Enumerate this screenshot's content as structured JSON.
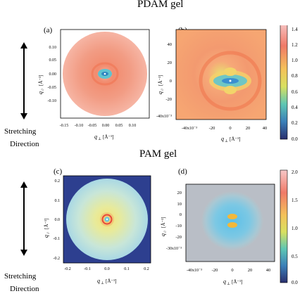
{
  "sections": [
    {
      "title": "PDAM gel",
      "side_label": [
        "Stretching",
        "Direction"
      ],
      "panels": [
        {
          "label": "(a)",
          "x_axis_label": "q",
          "x_axis_subscript": "⊥",
          "x_axis_unit": "[Å⁻¹]",
          "y_axis_label": "q",
          "y_axis_subscript": "//",
          "y_axis_unit": "[Å⁻¹]",
          "x_ticks": [
            "-0.15",
            "-0.10",
            "-0.05",
            "0.00",
            "0.05",
            "0.10"
          ],
          "y_ticks": [
            "0.10",
            "0.05",
            "0.00",
            "-0.05",
            "-0.10"
          ]
        },
        {
          "label": "(b)",
          "x_axis_label": "q",
          "x_axis_subscript": "⊥",
          "x_axis_unit": "[Å⁻¹]",
          "y_axis_label": "q",
          "y_axis_subscript": "//",
          "y_axis_unit": "[Å⁻¹]",
          "x_ticks": [
            "-40x10⁻³",
            "-20",
            "0",
            "20",
            "40"
          ],
          "y_ticks": [
            "40",
            "20",
            "0",
            "-20",
            "-40x10⁻³"
          ],
          "colorbar_ticks": [
            "1.4",
            "1.2",
            "1.0",
            "0.8",
            "0.6",
            "0.4",
            "0.2",
            "0.0"
          ]
        }
      ]
    },
    {
      "title": "PAM gel",
      "side_label": [
        "Stretching",
        "Direction"
      ],
      "panels": [
        {
          "label": "(c)",
          "x_axis_label": "q",
          "x_axis_subscript": "⊥",
          "x_axis_unit": "[Å⁻¹]",
          "y_axis_label": "q",
          "y_axis_subscript": "//",
          "y_axis_unit": "[Å⁻¹]",
          "x_ticks": [
            "-0.2",
            "-0.1",
            "0.0",
            "0.1",
            "0.2"
          ],
          "y_ticks": [
            "0.2",
            "0.1",
            "0.0",
            "-0.1",
            "-0.2"
          ]
        },
        {
          "label": "(d)",
          "x_axis_label": "q",
          "x_axis_subscript": "⊥",
          "x_axis_unit": "[Å⁻¹]",
          "y_axis_label": "q",
          "y_axis_subscript": "//",
          "y_axis_unit": "[Å⁻¹]",
          "x_ticks": [
            "-40x10⁻³",
            "-20",
            "0",
            "20",
            "40"
          ],
          "y_ticks": [
            "20",
            "10",
            "0",
            "-10",
            "-20",
            "-30x10⁻³"
          ],
          "colorbar_ticks": [
            "2.0",
            "1.5",
            "1.0",
            "0.5",
            "0.0"
          ]
        }
      ]
    }
  ]
}
